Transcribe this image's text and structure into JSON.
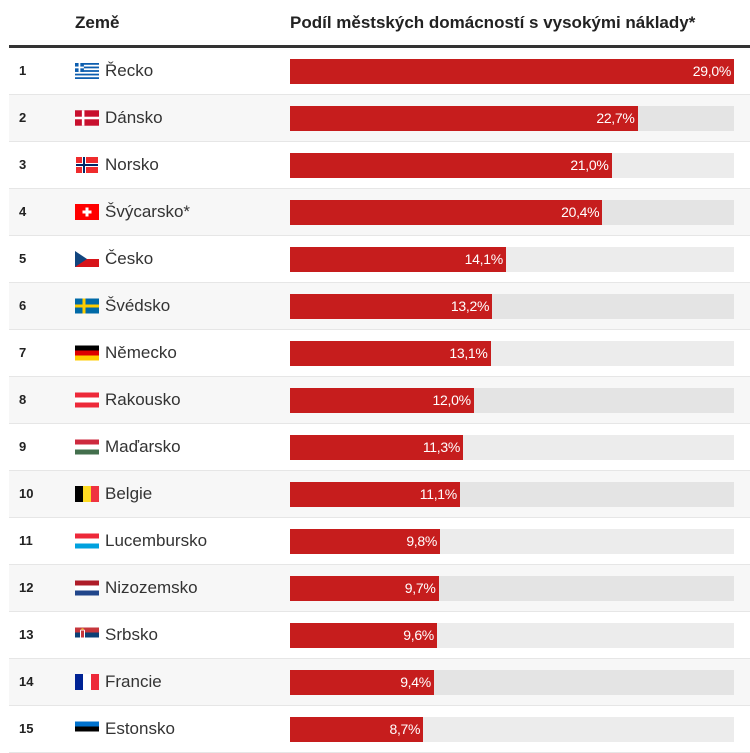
{
  "header": {
    "country_label": "Země",
    "value_label": "Podíl městských domácností s vysokými náklady*"
  },
  "colors": {
    "bar": "#c61d1d",
    "track": "#ececec",
    "track_alt": "#e4e4e4",
    "row_alt": "#f7f7f7",
    "header_rule": "#333333"
  },
  "chart_data": {
    "type": "bar",
    "orientation": "horizontal",
    "title": "Podíl městských domácností s vysokými náklady*",
    "xlabel": "",
    "ylabel": "Země",
    "xlim": [
      0,
      29.0
    ],
    "grid": false,
    "legend": "none",
    "categories": [
      "Řecko",
      "Dánsko",
      "Norsko",
      "Švýcarsko*",
      "Česko",
      "Švédsko",
      "Německo",
      "Rakousko",
      "Maďarsko",
      "Belgie",
      "Lucembursko",
      "Nizozemsko",
      "Srbsko",
      "Francie",
      "Estonsko"
    ],
    "values": [
      29.0,
      22.7,
      21.0,
      20.4,
      14.1,
      13.2,
      13.1,
      12.0,
      11.3,
      11.1,
      9.8,
      9.7,
      9.6,
      9.4,
      8.7
    ],
    "value_labels": [
      "29,0%",
      "22,7%",
      "21,0%",
      "20,4%",
      "14,1%",
      "13,2%",
      "13,1%",
      "12,0%",
      "11,3%",
      "11,1%",
      "9,8%",
      "9,7%",
      "9,6%",
      "9,4%",
      "8,7%"
    ],
    "unit": "%"
  },
  "rows": [
    {
      "rank": "1",
      "country": "Řecko",
      "flag": "greece-flag-icon",
      "value": 29.0,
      "label": "29,0%"
    },
    {
      "rank": "2",
      "country": "Dánsko",
      "flag": "denmark-flag-icon",
      "value": 22.7,
      "label": "22,7%"
    },
    {
      "rank": "3",
      "country": "Norsko",
      "flag": "norway-flag-icon",
      "value": 21.0,
      "label": "21,0%"
    },
    {
      "rank": "4",
      "country": "Švýcarsko*",
      "flag": "switzerland-flag-icon",
      "value": 20.4,
      "label": "20,4%"
    },
    {
      "rank": "5",
      "country": "Česko",
      "flag": "czechia-flag-icon",
      "value": 14.1,
      "label": "14,1%"
    },
    {
      "rank": "6",
      "country": "Švédsko",
      "flag": "sweden-flag-icon",
      "value": 13.2,
      "label": "13,2%"
    },
    {
      "rank": "7",
      "country": "Německo",
      "flag": "germany-flag-icon",
      "value": 13.1,
      "label": "13,1%"
    },
    {
      "rank": "8",
      "country": "Rakousko",
      "flag": "austria-flag-icon",
      "value": 12.0,
      "label": "12,0%"
    },
    {
      "rank": "9",
      "country": "Maďarsko",
      "flag": "hungary-flag-icon",
      "value": 11.3,
      "label": "11,3%"
    },
    {
      "rank": "10",
      "country": "Belgie",
      "flag": "belgium-flag-icon",
      "value": 11.1,
      "label": "11,1%"
    },
    {
      "rank": "11",
      "country": "Lucembursko",
      "flag": "luxembourg-flag-icon",
      "value": 9.8,
      "label": "9,8%"
    },
    {
      "rank": "12",
      "country": "Nizozemsko",
      "flag": "netherlands-flag-icon",
      "value": 9.7,
      "label": "9,7%"
    },
    {
      "rank": "13",
      "country": "Srbsko",
      "flag": "serbia-flag-icon",
      "value": 9.6,
      "label": "9,6%"
    },
    {
      "rank": "14",
      "country": "Francie",
      "flag": "france-flag-icon",
      "value": 9.4,
      "label": "9,4%"
    },
    {
      "rank": "15",
      "country": "Estonsko",
      "flag": "estonia-flag-icon",
      "value": 8.7,
      "label": "8,7%"
    }
  ]
}
